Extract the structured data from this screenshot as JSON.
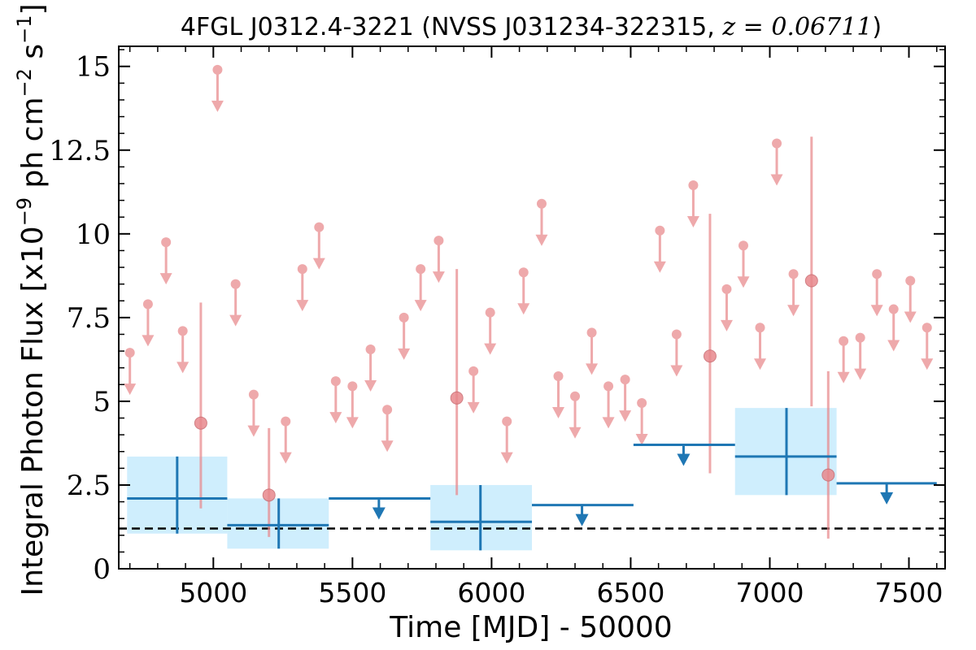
{
  "chart_data": {
    "type": "scatter",
    "title": "4FGL J0312.4-3221 (NVSS J031234-322315, z = 0.06711)",
    "title_source": "4FGL J0312.4-3221 (NVSS J031234-322315, ",
    "title_z": "z = 0.06711",
    "title_close": ")",
    "xlabel": "Time [MJD] - 50000",
    "ylabel": "Integral Photon Flux [x10",
    "ylabel_exp": "−9",
    "ylabel_unit": " ph cm",
    "ylabel_unit_exp": "−2",
    "ylabel_s": " s",
    "ylabel_s_exp": "−1",
    "ylabel_close": "]",
    "xlim": [
      4660,
      7630
    ],
    "ylim": [
      0,
      15.6
    ],
    "xticks": [
      5000,
      5500,
      6000,
      6500,
      7000,
      7500
    ],
    "xtick_labels": [
      "5000",
      "5500",
      "6000",
      "6500",
      "7000",
      "7500"
    ],
    "yticks": [
      0,
      2.5,
      5,
      7.5,
      10,
      12.5,
      15
    ],
    "ytick_labels": [
      "0",
      "2.5",
      "5",
      "7.5",
      "10",
      "12.5",
      "15"
    ],
    "grid": false,
    "colors": {
      "monthly": "#e8888c",
      "yearly": "#1f77b4",
      "yearly_band": "#cfeefd",
      "reference": "#000000"
    },
    "reference_line": {
      "y": 1.2,
      "style": "dashed"
    },
    "monthly_upper_limits": {
      "x": [
        4700,
        4765,
        4830,
        4890,
        5015,
        5080,
        5145,
        5260,
        5320,
        5380,
        5440,
        5500,
        5565,
        5625,
        5685,
        5745,
        5810,
        5935,
        5995,
        6055,
        6115,
        6180,
        6240,
        6300,
        6360,
        6420,
        6480,
        6540,
        6605,
        6665,
        6725,
        6845,
        6905,
        6965,
        7025,
        7085,
        7265,
        7325,
        7385,
        7445,
        7505,
        7565
      ],
      "y": [
        6.45,
        7.9,
        9.75,
        7.1,
        14.9,
        8.5,
        5.2,
        4.4,
        8.95,
        10.2,
        5.6,
        5.45,
        6.55,
        4.75,
        7.5,
        8.95,
        9.8,
        5.9,
        7.65,
        4.4,
        8.85,
        10.9,
        5.75,
        5.15,
        7.05,
        5.45,
        5.65,
        4.95,
        10.1,
        7.0,
        11.45,
        8.35,
        9.65,
        7.2,
        12.7,
        8.8,
        6.8,
        6.9,
        8.8,
        7.75,
        8.6,
        7.2
      ]
    },
    "monthly_detections": {
      "x": [
        4955,
        5200,
        5875,
        6785,
        7150,
        7210
      ],
      "y": [
        4.35,
        2.2,
        5.1,
        6.35,
        8.6,
        2.8
      ],
      "y_low": [
        1.8,
        0.95,
        2.2,
        2.85,
        4.85,
        0.9
      ],
      "y_high": [
        7.95,
        4.2,
        8.95,
        10.6,
        12.9,
        5.9
      ]
    },
    "yearly_detections": [
      {
        "x_start": 4690,
        "x_end": 5050,
        "x": 4870,
        "y": 2.1,
        "y_low": 1.05,
        "y_high": 3.35
      },
      {
        "x_start": 5050,
        "x_end": 5415,
        "x": 5235,
        "y": 1.3,
        "y_low": 0.6,
        "y_high": 2.1
      },
      {
        "x_start": 5780,
        "x_end": 6145,
        "x": 5960,
        "y": 1.4,
        "y_low": 0.55,
        "y_high": 2.5
      },
      {
        "x_start": 6875,
        "x_end": 7240,
        "x": 7060,
        "y": 3.35,
        "y_low": 2.2,
        "y_high": 4.8
      }
    ],
    "yearly_upper_limits": [
      {
        "x_start": 5415,
        "x_end": 5780,
        "x": 5595,
        "y": 2.1
      },
      {
        "x_start": 6145,
        "x_end": 6510,
        "x": 6325,
        "y": 1.9
      },
      {
        "x_start": 6510,
        "x_end": 6875,
        "x": 6690,
        "y": 3.7
      },
      {
        "x_start": 7240,
        "x_end": 7600,
        "x": 7420,
        "y": 2.55
      }
    ]
  }
}
